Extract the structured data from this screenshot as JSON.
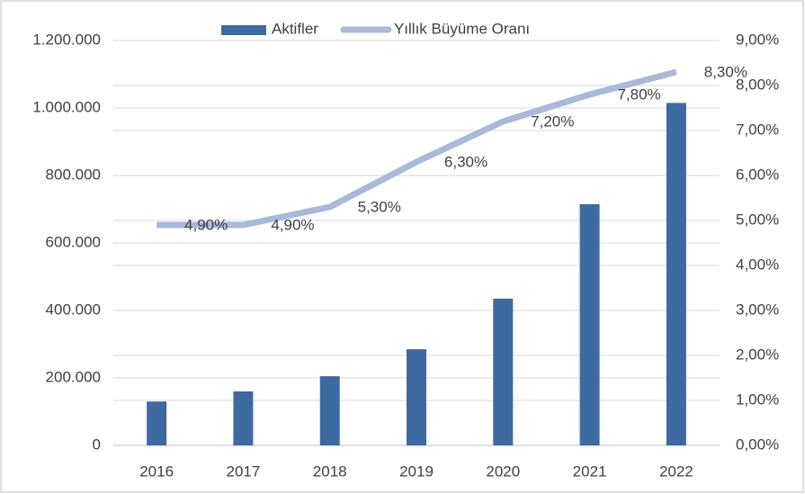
{
  "chart_data": {
    "type": "bar_line",
    "categories": [
      "2016",
      "2017",
      "2018",
      "2019",
      "2020",
      "2021",
      "2022"
    ],
    "series": [
      {
        "name": "Aktifler",
        "color": "#3d6aa0",
        "type": "bar",
        "values": [
          130000,
          160000,
          205000,
          285000,
          435000,
          715000,
          1015000
        ]
      },
      {
        "name": "Yıllık Büyüme Oranı",
        "color": "#a9b9d9",
        "type": "line",
        "axis": "y2",
        "values": [
          4.9,
          4.9,
          5.3,
          6.3,
          7.2,
          7.8,
          8.3
        ],
        "value_labels": [
          "4,90%",
          "4,90%",
          "5,30%",
          "6,30%",
          "7,20%",
          "7,80%",
          "8,30%"
        ]
      }
    ],
    "ylim": [
      0,
      1200000
    ],
    "yticks": [
      0,
      {
        "value": 200000,
        "label": "200.000"
      },
      {
        "value": 400000,
        "label": "400.000"
      },
      {
        "value": 600000,
        "label": "600.000"
      },
      {
        "value": 800000,
        "label": "800.000"
      },
      {
        "value": 1000000,
        "label": "1.000.000"
      },
      {
        "value": 1200000,
        "label": "1.200.000"
      }
    ],
    "y2lim": [
      0,
      9
    ],
    "y2ticks": [
      {
        "value": 0,
        "label": "0,00%"
      },
      {
        "value": 1,
        "label": "1,00%"
      },
      {
        "value": 2,
        "label": "2,00%"
      },
      {
        "value": 3,
        "label": "3,00%"
      },
      {
        "value": 4,
        "label": "4,00%"
      },
      {
        "value": 5,
        "label": "5,00%"
      },
      {
        "value": 6,
        "label": "6,00%"
      },
      {
        "value": 7,
        "label": "7,00%"
      },
      {
        "value": 8,
        "label": "8,00%"
      },
      {
        "value": 9,
        "label": "9,00%"
      }
    ],
    "grid": true,
    "legend": "top"
  }
}
